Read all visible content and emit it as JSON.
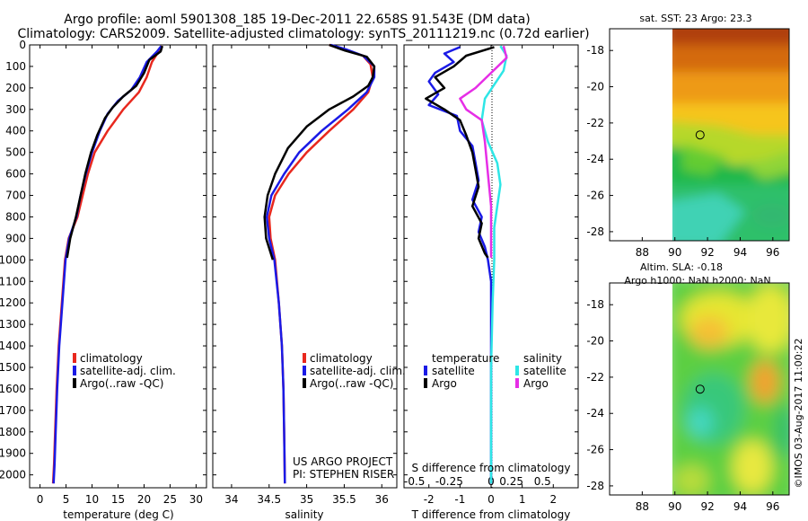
{
  "title_line1": "Argo profile: aoml 5901308_185 19-Dec-2011 22.658S 91.543E (DM data)",
  "title_line2": "Climatology: CARS2009. Satellite-adjusted climatology: synTS_20111219.nc (0.72d earlier)",
  "colors": {
    "red": "#e8281e",
    "blue": "#1a1ae6",
    "black": "#000000",
    "cyan": "#2ee6e6",
    "magenta": "#e62ee6"
  },
  "chart_data": [
    {
      "type": "line",
      "name": "temperature",
      "xlabel": "temperature (deg C)",
      "xlim": [
        -2,
        32
      ],
      "xticks": [
        0,
        5,
        10,
        15,
        20,
        25,
        30
      ],
      "ylim": [
        2060,
        0
      ],
      "yticks": [
        0,
        100,
        200,
        300,
        400,
        500,
        600,
        700,
        800,
        900,
        1000,
        1100,
        1200,
        1300,
        1400,
        1500,
        1600,
        1700,
        1800,
        1900,
        2000
      ],
      "legend": [
        "climatology",
        "satellite-adj. clim.",
        "Argo(..raw -QC)"
      ],
      "series": [
        {
          "name": "climatology",
          "color": "red",
          "points": [
            [
              23.5,
              5
            ],
            [
              22.8,
              30
            ],
            [
              21.5,
              80
            ],
            [
              20.5,
              150
            ],
            [
              19,
              220
            ],
            [
              16,
              300
            ],
            [
              13,
              400
            ],
            [
              10.5,
              500
            ],
            [
              9.2,
              600
            ],
            [
              8.2,
              700
            ],
            [
              7.2,
              800
            ],
            [
              5.5,
              900
            ],
            [
              4.8,
              1000
            ],
            [
              4.2,
              1200
            ],
            [
              3.6,
              1400
            ],
            [
              3.2,
              1600
            ],
            [
              2.9,
              1800
            ],
            [
              2.7,
              1950
            ],
            [
              2.5,
              2040
            ]
          ]
        },
        {
          "name": "satellite-adj. clim.",
          "color": "blue",
          "points": [
            [
              23.3,
              5
            ],
            [
              22.5,
              30
            ],
            [
              20.5,
              80
            ],
            [
              19.2,
              150
            ],
            [
              17.5,
              210
            ],
            [
              15,
              260
            ],
            [
              13,
              320
            ],
            [
              11.5,
              400
            ],
            [
              10,
              500
            ],
            [
              8.8,
              600
            ],
            [
              7.8,
              700
            ],
            [
              7,
              800
            ],
            [
              5.6,
              900
            ],
            [
              4.9,
              1000
            ],
            [
              4.3,
              1200
            ],
            [
              3.7,
              1400
            ],
            [
              3.3,
              1600
            ],
            [
              3,
              1800
            ],
            [
              2.8,
              1950
            ],
            [
              2.6,
              2040
            ]
          ]
        },
        {
          "name": "Argo(..raw -QC)",
          "color": "black",
          "points": [
            [
              23.5,
              5
            ],
            [
              23.2,
              30
            ],
            [
              21,
              70
            ],
            [
              20,
              130
            ],
            [
              18.5,
              190
            ],
            [
              16,
              240
            ],
            [
              14,
              290
            ],
            [
              12.5,
              340
            ],
            [
              11,
              420
            ],
            [
              9.8,
              500
            ],
            [
              8.7,
              600
            ],
            [
              7.8,
              700
            ],
            [
              6.9,
              800
            ],
            [
              5.8,
              900
            ],
            [
              5.2,
              990
            ]
          ]
        }
      ]
    },
    {
      "type": "line",
      "name": "salinity",
      "xlabel": "salinity",
      "xlim": [
        33.75,
        36.2
      ],
      "xticks": [
        34,
        34.5,
        35,
        35.5,
        36
      ],
      "ylim": [
        2060,
        0
      ],
      "legend": [
        "climatology",
        "satellite-adj. clim.",
        "Argo(..raw -QC)"
      ],
      "credit1": "US ARGO PROJECT",
      "credit2": "PI: STEPHEN RISER",
      "series": [
        {
          "name": "climatology",
          "color": "red",
          "points": [
            [
              35.3,
              0
            ],
            [
              35.5,
              20
            ],
            [
              35.75,
              50
            ],
            [
              35.85,
              90
            ],
            [
              35.88,
              150
            ],
            [
              35.82,
              220
            ],
            [
              35.62,
              300
            ],
            [
              35.3,
              400
            ],
            [
              35,
              500
            ],
            [
              34.76,
              600
            ],
            [
              34.58,
              700
            ],
            [
              34.5,
              800
            ],
            [
              34.52,
              900
            ],
            [
              34.58,
              1000
            ],
            [
              34.63,
              1200
            ],
            [
              34.67,
              1400
            ],
            [
              34.69,
              1600
            ],
            [
              34.7,
              1800
            ],
            [
              34.71,
              2040
            ]
          ]
        },
        {
          "name": "satellite-adj. clim.",
          "color": "blue",
          "points": [
            [
              35.32,
              0
            ],
            [
              35.52,
              20
            ],
            [
              35.75,
              50
            ],
            [
              35.9,
              100
            ],
            [
              35.9,
              150
            ],
            [
              35.8,
              220
            ],
            [
              35.55,
              300
            ],
            [
              35.2,
              400
            ],
            [
              34.9,
              500
            ],
            [
              34.7,
              600
            ],
            [
              34.53,
              700
            ],
            [
              34.47,
              800
            ],
            [
              34.5,
              900
            ],
            [
              34.57,
              1000
            ],
            [
              34.63,
              1200
            ],
            [
              34.67,
              1400
            ],
            [
              34.69,
              1600
            ],
            [
              34.7,
              1800
            ],
            [
              34.71,
              2040
            ]
          ]
        },
        {
          "name": "Argo(..raw -QC)",
          "color": "black",
          "points": [
            [
              35.3,
              0
            ],
            [
              35.5,
              25
            ],
            [
              35.8,
              55
            ],
            [
              35.9,
              100
            ],
            [
              35.88,
              150
            ],
            [
              35.82,
              190
            ],
            [
              35.62,
              240
            ],
            [
              35.3,
              300
            ],
            [
              35,
              380
            ],
            [
              34.75,
              480
            ],
            [
              34.58,
              600
            ],
            [
              34.48,
              700
            ],
            [
              34.44,
              800
            ],
            [
              34.46,
              900
            ],
            [
              34.55,
              1000
            ]
          ]
        }
      ]
    },
    {
      "type": "line",
      "name": "difference",
      "xlabel": "T difference from climatology",
      "xlabel_top": "S difference from climatology",
      "xlim": [
        -2.8,
        2.8
      ],
      "xticks": [
        -2,
        -1,
        0,
        1,
        2
      ],
      "s_ticks": [
        "-0.5",
        "-0.25",
        "0",
        "0.25",
        "0.5"
      ],
      "ylim": [
        2060,
        0
      ],
      "legend_titles": [
        "temperature",
        "salinity"
      ],
      "legend_left": [
        "satellite",
        "Argo"
      ],
      "legend_right": [
        "satellite",
        "Argo"
      ],
      "series": [
        {
          "name": "temperature satellite",
          "color": "blue",
          "points": [
            [
              -1,
              10
            ],
            [
              -1.5,
              40
            ],
            [
              -1.2,
              80
            ],
            [
              -1.8,
              130
            ],
            [
              -2,
              170
            ],
            [
              -1.7,
              230
            ],
            [
              -2,
              280
            ],
            [
              -1.1,
              330
            ],
            [
              -1,
              400
            ],
            [
              -0.6,
              470
            ],
            [
              -0.5,
              550
            ],
            [
              -0.4,
              630
            ],
            [
              -0.6,
              720
            ],
            [
              -0.3,
              800
            ],
            [
              -0.4,
              870
            ],
            [
              -0.2,
              940
            ],
            [
              -0.1,
              1000
            ],
            [
              0,
              1100
            ],
            [
              0,
              1300
            ],
            [
              0,
              1600
            ],
            [
              0,
              2040
            ]
          ]
        },
        {
          "name": "temperature Argo",
          "color": "black",
          "points": [
            [
              0.1,
              10
            ],
            [
              -0.8,
              50
            ],
            [
              -1.2,
              100
            ],
            [
              -1.8,
              150
            ],
            [
              -1.5,
              200
            ],
            [
              -2.1,
              250
            ],
            [
              -1.5,
              300
            ],
            [
              -1,
              350
            ],
            [
              -0.8,
              420
            ],
            [
              -0.6,
              500
            ],
            [
              -0.5,
              580
            ],
            [
              -0.4,
              660
            ],
            [
              -0.6,
              750
            ],
            [
              -0.3,
              830
            ],
            [
              -0.4,
              900
            ],
            [
              -0.2,
              970
            ],
            [
              -0.1,
              990
            ]
          ]
        },
        {
          "name": "salinity satellite",
          "color": "cyan",
          "points": [
            [
              0.3,
              5
            ],
            [
              0.5,
              50
            ],
            [
              0.4,
              120
            ],
            [
              -0.2,
              250
            ],
            [
              -0.3,
              350
            ],
            [
              -0.1,
              450
            ],
            [
              0.2,
              550
            ],
            [
              0.3,
              650
            ],
            [
              0.2,
              750
            ],
            [
              0.1,
              850
            ],
            [
              0.1,
              1000
            ],
            [
              0.05,
              1200
            ],
            [
              0,
              1500
            ],
            [
              0,
              2040
            ]
          ]
        },
        {
          "name": "salinity Argo",
          "color": "magenta",
          "points": [
            [
              0.4,
              5
            ],
            [
              0.5,
              60
            ],
            [
              0,
              130
            ],
            [
              -0.5,
              200
            ],
            [
              -1,
              250
            ],
            [
              -0.8,
              300
            ],
            [
              -0.3,
              350
            ],
            [
              -0.2,
              450
            ],
            [
              -0.1,
              600
            ],
            [
              0,
              750
            ],
            [
              0,
              990
            ]
          ]
        }
      ]
    },
    {
      "type": "heatmap",
      "name": "sst",
      "title": "sat. SST: 23 Argo: 23.3",
      "xticks": [
        88,
        90,
        92,
        94,
        96
      ],
      "yticks": [
        -18,
        -20,
        -22,
        -24,
        -26,
        -28
      ],
      "xlim": [
        86,
        97
      ],
      "ylim": [
        -28.5,
        -16.8
      ],
      "marker": [
        91.543,
        -22.658
      ]
    },
    {
      "type": "heatmap",
      "name": "sla",
      "title1": "Altim. SLA: -0.18",
      "title2": "Argo h1000: NaN h2000: NaN",
      "xticks": [
        88,
        90,
        92,
        94,
        96
      ],
      "yticks": [
        -18,
        -20,
        -22,
        -24,
        -26,
        -28
      ],
      "xlim": [
        86,
        97
      ],
      "ylim": [
        -28.5,
        -16.8
      ],
      "marker": [
        91.543,
        -22.658
      ]
    }
  ],
  "footer": "©IMOS 03-Aug-2017 11:00:22"
}
